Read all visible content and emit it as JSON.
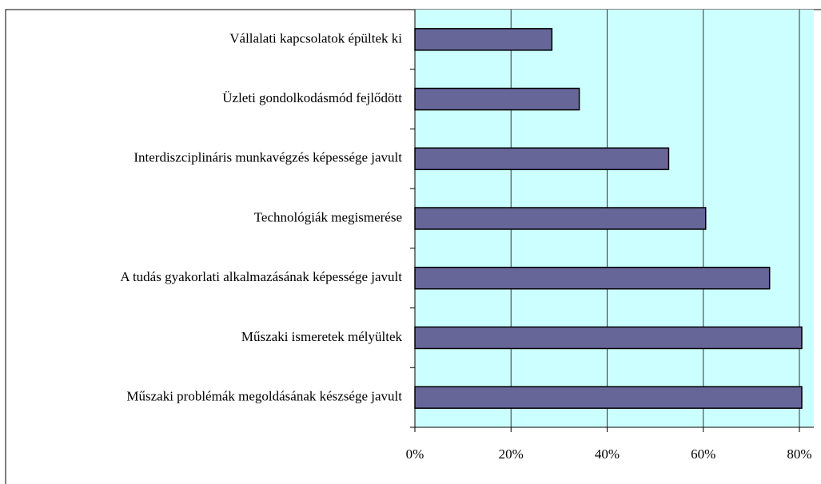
{
  "chart_data": {
    "type": "barh",
    "categories": [
      "Vállalati kapcsolatok épültek ki",
      "Üzleti gondolkodásmód fejlődött",
      "Interdiszciplináris munkavégzés képessége javult",
      "Technológiák megismerése",
      "A tudás gyakorlati alkalmazásának képessége javult",
      "Műszaki ismeretek mélyültek",
      "Műszaki problémák megoldásának készsége javult"
    ],
    "values": [
      28.5,
      34.2,
      52.8,
      60.5,
      73.8,
      80.5,
      80.5
    ],
    "color": "#666699",
    "xlim": [
      0,
      83
    ],
    "xticks": [
      {
        "value": 0,
        "label": "0%"
      },
      {
        "value": 20,
        "label": "20%"
      },
      {
        "value": 40,
        "label": "40%"
      },
      {
        "value": 60,
        "label": "60%"
      },
      {
        "value": 80,
        "label": "80%"
      }
    ],
    "grid": true
  }
}
